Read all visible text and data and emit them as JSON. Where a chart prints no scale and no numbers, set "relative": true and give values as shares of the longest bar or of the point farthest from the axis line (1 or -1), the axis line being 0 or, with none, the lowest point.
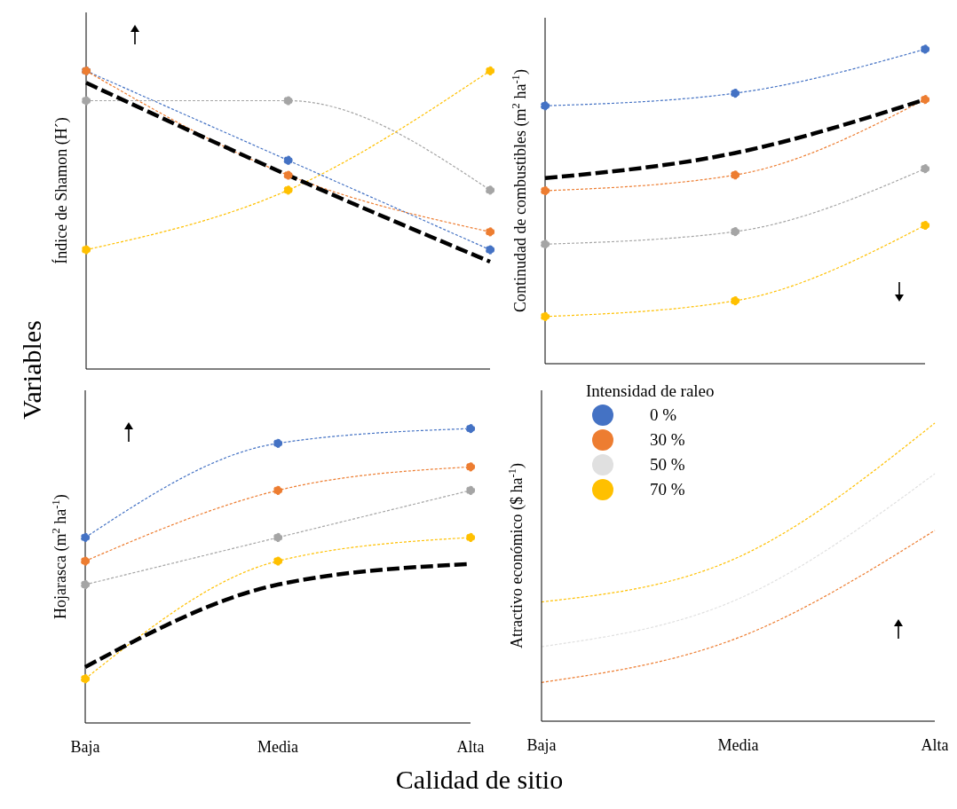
{
  "chart_data": [
    {
      "type": "line",
      "ylabel": "Índice de Shamon (H´)",
      "categories": [
        null,
        null,
        null
      ],
      "relative": true,
      "legend": false,
      "annotations": [
        "Variables",
        "Calidad de sitio"
      ],
      "series": [
        {
          "color": "#4472c4",
          "values": [
            1,
            0.7,
            0.4
          ],
          "marker": "circle",
          "line_style": "dashed"
        },
        {
          "color": "#ed7d31",
          "values": [
            1,
            0.65,
            0.46
          ],
          "marker": "circle",
          "line_style": "dashed"
        },
        {
          "color": "#a5a5a5",
          "values": [
            0.9,
            0.9,
            0.6
          ],
          "marker": "circle",
          "line_style": "dashed"
        },
        {
          "color": "#ffc000",
          "values": [
            0.4,
            0.6,
            1
          ],
          "marker": "circle",
          "line_style": "dashed"
        },
        {
          "color": "#000000",
          "values": [
            0.96,
            0.65,
            0.36
          ],
          "marker": "none",
          "line_style": "dashed"
        }
      ]
    },
    {
      "type": "line",
      "ylabel": "Continudad de combustibles (m$^{2}$ ha$^{-1}$)",
      "categories": [
        null,
        null,
        null
      ],
      "relative": true,
      "legend": false,
      "series": [
        {
          "color": "#4472c4",
          "values": [
            0.82,
            0.86,
            1
          ],
          "marker": "circle",
          "line_style": "dashed"
        },
        {
          "color": "#ed7d31",
          "values": [
            0.55,
            0.6,
            0.84
          ],
          "marker": "circle",
          "line_style": "dashed"
        },
        {
          "color": "#a5a5a5",
          "values": [
            0.38,
            0.42,
            0.62
          ],
          "marker": "circle",
          "line_style": "dashed"
        },
        {
          "color": "#ffc000",
          "values": [
            0.15,
            0.2,
            0.44
          ],
          "marker": "circle",
          "line_style": "dashed"
        },
        {
          "color": "#000000",
          "values": [
            0.59,
            0.67,
            0.84
          ],
          "marker": "none",
          "line_style": "dashed"
        }
      ]
    },
    {
      "type": "line",
      "ylabel": "Hojarasca (m$^{2}$ ha$^{-1}$)",
      "categories": [
        "Baja",
        "Media",
        "Alta"
      ],
      "relative": true,
      "legend": false,
      "series": [
        {
          "color": "#4472c4",
          "values": [
            0.63,
            0.95,
            1
          ],
          "marker": "circle",
          "line_style": "dashed"
        },
        {
          "color": "#ed7d31",
          "values": [
            0.55,
            0.79,
            0.87
          ],
          "marker": "circle",
          "line_style": "dashed"
        },
        {
          "color": "#a5a5a5",
          "values": [
            0.47,
            0.63,
            0.79
          ],
          "marker": "circle",
          "line_style": "dashed"
        },
        {
          "color": "#ffc000",
          "values": [
            0.15,
            0.55,
            0.63
          ],
          "marker": "circle",
          "line_style": "dashed"
        },
        {
          "color": "#000000",
          "values": [
            0.19,
            0.47,
            0.54
          ],
          "marker": "none",
          "line_style": "dashed"
        }
      ]
    },
    {
      "type": "line",
      "ylabel": "Atractivo económico ($ ha$^{-1}$)",
      "categories": [
        "Baja",
        "Media",
        "Alta"
      ],
      "relative": true,
      "legend": "top left",
      "legend_title": "Intensidad  de raleo",
      "series": [
        {
          "name": "0 %",
          "color": "#4472c4",
          "values": [
            null,
            null,
            null
          ],
          "marker": "none",
          "line_style": "dashed"
        },
        {
          "name": "30 %",
          "color": "#ed7d31",
          "values": [
            0.13,
            0.28,
            0.64
          ],
          "marker": "none",
          "line_style": "dashed"
        },
        {
          "name": "50 %",
          "color": "#e0e0e0",
          "values": [
            0.25,
            0.41,
            0.83
          ],
          "marker": "none",
          "line_style": "dashed"
        },
        {
          "name": "70 %",
          "color": "#ffc000",
          "values": [
            0.4,
            0.55,
            1
          ],
          "marker": "none",
          "line_style": "dashed"
        }
      ]
    }
  ]
}
